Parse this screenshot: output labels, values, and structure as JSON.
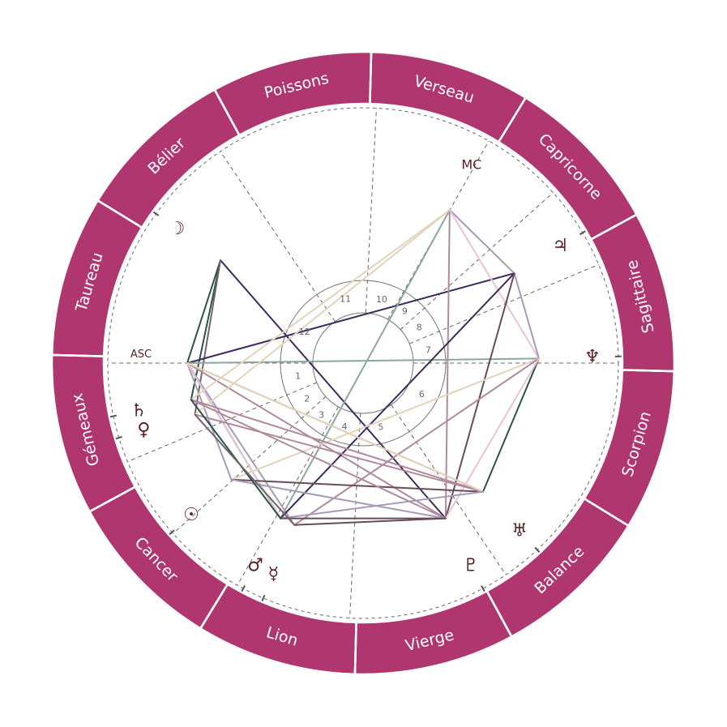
{
  "colors": {
    "ring": "#b03670",
    "ring_divider": "#ffffff",
    "glyph": "#5a1f22",
    "cusp": "#666666",
    "circle": "#777777"
  },
  "signs": [
    {
      "name": "Bélier",
      "start_longitude": 0
    },
    {
      "name": "Taureau",
      "start_longitude": 30
    },
    {
      "name": "Gémeaux",
      "start_longitude": 60
    },
    {
      "name": "Cancer",
      "start_longitude": 90
    },
    {
      "name": "Lion",
      "start_longitude": 120
    },
    {
      "name": "Vierge",
      "start_longitude": 150
    },
    {
      "name": "Balance",
      "start_longitude": 180
    },
    {
      "name": "Scorpion",
      "start_longitude": 210
    },
    {
      "name": "Sagittaire",
      "start_longitude": 240
    },
    {
      "name": "Capricorne",
      "start_longitude": 270
    },
    {
      "name": "Verseau",
      "start_longitude": 300
    },
    {
      "name": "Poissons",
      "start_longitude": 330
    }
  ],
  "axes": {
    "asc": {
      "label": "ASC",
      "longitude": 61.5
    },
    "mc": {
      "label": "MC",
      "longitude": 302
    }
  },
  "houses": [
    {
      "number": "1",
      "cusp_longitude": 61.5
    },
    {
      "number": "2",
      "cusp_longitude": 84.2
    },
    {
      "number": "3",
      "cusp_longitude": 103.4
    },
    {
      "number": "4",
      "cusp_longitude": 122
    },
    {
      "number": "5",
      "cusp_longitude": 148.5
    },
    {
      "number": "6",
      "cusp_longitude": 185.5
    },
    {
      "number": "7",
      "cusp_longitude": 241.5
    },
    {
      "number": "8",
      "cusp_longitude": 264.2
    },
    {
      "number": "9",
      "cusp_longitude": 283.4
    },
    {
      "number": "10",
      "cusp_longitude": 302
    },
    {
      "number": "11",
      "cusp_longitude": 328.5
    },
    {
      "number": "12",
      "cusp_longitude": 5.5
    }
  ],
  "planets": [
    {
      "id": "moon",
      "glyph": "☽",
      "icon": "moon-icon",
      "longitude": 25.7
    },
    {
      "id": "saturn",
      "glyph": "♄",
      "icon": "saturn-icon",
      "longitude": 73.5
    },
    {
      "id": "venus",
      "glyph": "♀",
      "icon": "venus-icon",
      "longitude": 78.5
    },
    {
      "id": "sun",
      "glyph": "☉",
      "icon": "sun-icon",
      "longitude": 103
    },
    {
      "id": "mars",
      "glyph": "♂",
      "icon": "mars-icon",
      "longitude": 123.5
    },
    {
      "id": "mercury",
      "glyph": "☿",
      "icon": "mercury-icon",
      "longitude": 128.5
    },
    {
      "id": "pluto",
      "glyph": "♇",
      "icon": "pluto-icon",
      "longitude": 179.5
    },
    {
      "id": "uranus",
      "glyph": "♅",
      "icon": "uranus-icon",
      "longitude": 194.5
    },
    {
      "id": "neptune",
      "glyph": "♆",
      "icon": "neptune-icon",
      "longitude": 243
    },
    {
      "id": "jupiter",
      "glyph": "♃",
      "icon": "jupiter-icon",
      "longitude": 272.2
    }
  ],
  "aspects": [
    {
      "from": "moon",
      "to": "pluto",
      "color": "#3d2a5e"
    },
    {
      "from": "moon",
      "to": "asc",
      "color": "#2e5346"
    },
    {
      "from": "moon",
      "to": "saturn",
      "color": "#2e5346"
    },
    {
      "from": "moon",
      "to": "venus",
      "color": "#6f6470"
    },
    {
      "from": "asc",
      "to": "jupiter",
      "color": "#3d2a5e"
    },
    {
      "from": "asc",
      "to": "neptune",
      "color": "#8aa89c"
    },
    {
      "from": "asc",
      "to": "mars",
      "color": "#2e5346"
    },
    {
      "from": "asc",
      "to": "mercury",
      "color": "#a59bb9"
    },
    {
      "from": "asc",
      "to": "uranus",
      "color": "#b08a9c"
    },
    {
      "from": "asc",
      "to": "pluto",
      "color": "#b08a9c"
    },
    {
      "from": "asc",
      "to": "sun",
      "color": "#a59bb9"
    },
    {
      "from": "asc",
      "to": "mars",
      "color": "#e8c4d0"
    },
    {
      "from": "mc",
      "to": "mars",
      "color": "#8aa89c"
    },
    {
      "from": "mc",
      "to": "saturn",
      "color": "#e3d3b9"
    },
    {
      "from": "mc",
      "to": "venus",
      "color": "#e3d3b9"
    },
    {
      "from": "mc",
      "to": "pluto",
      "color": "#b08a9c"
    },
    {
      "from": "mc",
      "to": "jupiter",
      "color": "#a59bb9"
    },
    {
      "from": "mc",
      "to": "neptune",
      "color": "#e8c4d0"
    },
    {
      "from": "jupiter",
      "to": "mars",
      "color": "#3d2a5e"
    },
    {
      "from": "jupiter",
      "to": "neptune",
      "color": "#a59bb9"
    },
    {
      "from": "jupiter",
      "to": "pluto",
      "color": "#6a4b58"
    },
    {
      "from": "neptune",
      "to": "uranus",
      "color": "#2e5346"
    },
    {
      "from": "neptune",
      "to": "sun",
      "color": "#e3d3b9"
    },
    {
      "from": "neptune",
      "to": "mercury",
      "color": "#b08a9c"
    },
    {
      "from": "neptune",
      "to": "pluto",
      "color": "#e8c4d0"
    },
    {
      "from": "sun",
      "to": "uranus",
      "color": "#6a4b58"
    },
    {
      "from": "sun",
      "to": "pluto",
      "color": "#a59bb9"
    },
    {
      "from": "saturn",
      "to": "uranus",
      "color": "#b08a9c"
    },
    {
      "from": "venus",
      "to": "uranus",
      "color": "#b08a9c"
    },
    {
      "from": "saturn",
      "to": "pluto",
      "color": "#b08a9c"
    },
    {
      "from": "asc",
      "to": "uranus",
      "color": "#e3d3b9"
    },
    {
      "from": "mars",
      "to": "uranus",
      "color": "#a59bb9"
    },
    {
      "from": "mars",
      "to": "pluto",
      "color": "#6a4b58"
    },
    {
      "from": "mercury",
      "to": "pluto",
      "color": "#6a4b58"
    },
    {
      "from": "saturn",
      "to": "mars",
      "color": "#2e5346"
    },
    {
      "from": "venus",
      "to": "mercury",
      "color": "#6f6470"
    }
  ]
}
